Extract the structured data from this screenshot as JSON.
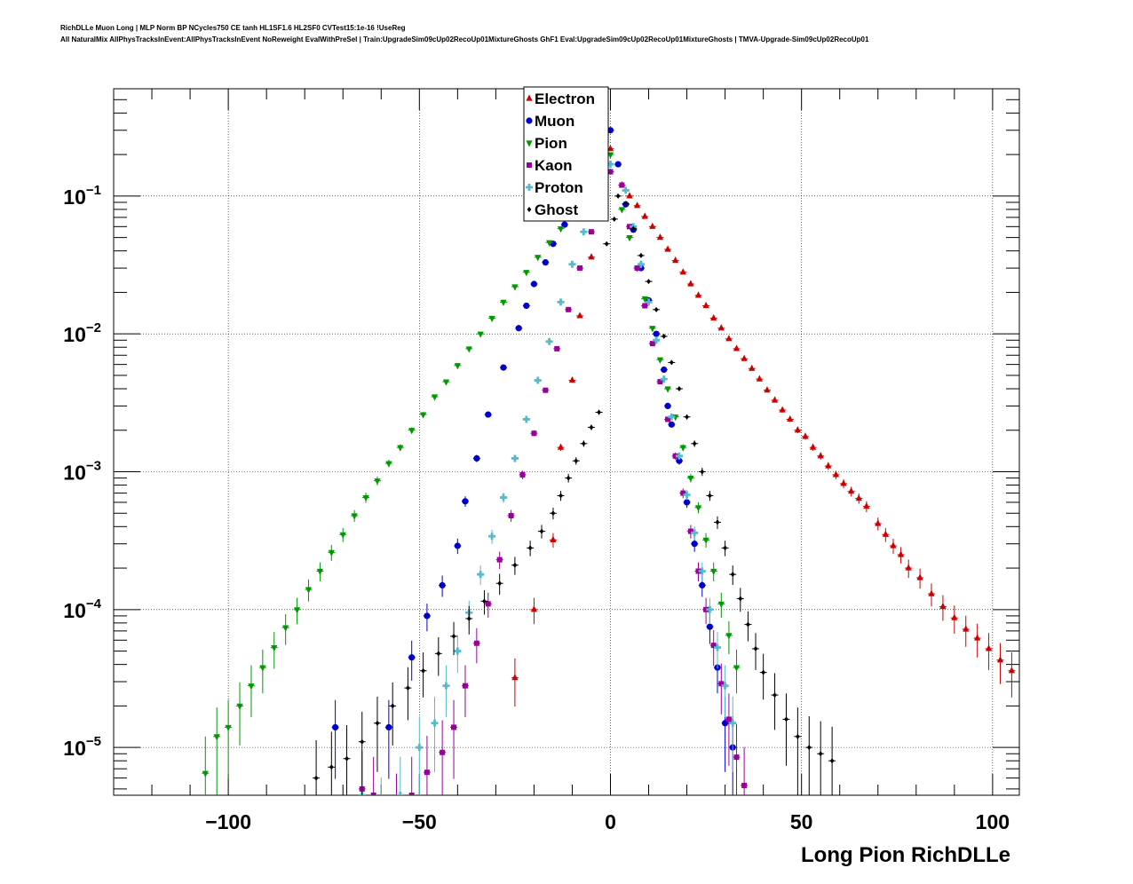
{
  "header": {
    "title_line1": "RichDLLe Muon Long | MLP Norm BP NCycles750 CE tanh HL1SF1.6 HL2SF0 CVTest15:1e-16 !UseReg",
    "title_line2": "All NaturalMix AllPhysTracksInEvent:AllPhysTracksInEvent NoReweight EvalWithPreSel | Train:UpgradeSim09cUp02RecoUp01MixtureGhosts GhF1 Eval:UpgradeSim09cUp02RecoUp01MixtureGhosts | TMVA-Upgrade-Sim09cUp02RecoUp01"
  },
  "chart_data": {
    "type": "scatter",
    "xlabel": "Long Pion RichDLLe",
    "ylabel": "",
    "xlim": [
      -130,
      107
    ],
    "ylim": [
      4.5e-06,
      0.6
    ],
    "yscale": "log",
    "grid": true,
    "legend_position": "top-center",
    "x_ticks": [
      -100,
      -50,
      0,
      50,
      100
    ],
    "x_tick_labels": [
      "−100",
      "−50",
      "0",
      "50",
      "100"
    ],
    "y_ticks": [
      1e-05,
      0.0001,
      0.001,
      0.01,
      0.1
    ],
    "y_tick_labels": [
      {
        "base": "10",
        "exp": "−5"
      },
      {
        "base": "10",
        "exp": "−4"
      },
      {
        "base": "10",
        "exp": "−3"
      },
      {
        "base": "10",
        "exp": "−2"
      },
      {
        "base": "10",
        "exp": "−1"
      }
    ],
    "series": [
      {
        "name": "Electron",
        "color": "#cc0000",
        "marker": "triangle-up",
        "points": [
          [
            -25,
            3.2e-05
          ],
          [
            -20,
            0.0001
          ],
          [
            -15,
            0.00032
          ],
          [
            -13,
            0.0015
          ],
          [
            -10,
            0.0046
          ],
          [
            -8,
            0.0135
          ],
          [
            -5,
            0.036
          ],
          [
            -3,
            0.19
          ],
          [
            0,
            0.22
          ],
          [
            3,
            0.12
          ],
          [
            5,
            0.1
          ],
          [
            7,
            0.085
          ],
          [
            9,
            0.071
          ],
          [
            11,
            0.06
          ],
          [
            13,
            0.05
          ],
          [
            15,
            0.041
          ],
          [
            17,
            0.034
          ],
          [
            19,
            0.028
          ],
          [
            21,
            0.023
          ],
          [
            23,
            0.019
          ],
          [
            25,
            0.016
          ],
          [
            27,
            0.013
          ],
          [
            29,
            0.011
          ],
          [
            31,
            0.0092
          ],
          [
            33,
            0.0078
          ],
          [
            35,
            0.0066
          ],
          [
            37,
            0.0056
          ],
          [
            39,
            0.0047
          ],
          [
            41,
            0.0039
          ],
          [
            43,
            0.0033
          ],
          [
            45,
            0.0028
          ],
          [
            47,
            0.0024
          ],
          [
            49,
            0.002
          ],
          [
            51,
            0.0018
          ],
          [
            53,
            0.0015
          ],
          [
            55,
            0.0013
          ],
          [
            57,
            0.0011
          ],
          [
            59,
            0.00095
          ],
          [
            61,
            0.00082
          ],
          [
            63,
            0.00072
          ],
          [
            65,
            0.00064
          ],
          [
            67,
            0.00056
          ],
          [
            70,
            0.00042
          ],
          [
            72,
            0.00035
          ],
          [
            74,
            0.00029
          ],
          [
            76,
            0.00025
          ],
          [
            78,
            0.0002
          ],
          [
            81,
            0.00017
          ],
          [
            84,
            0.00013
          ],
          [
            87,
            0.000105
          ],
          [
            90,
            8.7e-05
          ],
          [
            93,
            7.2e-05
          ],
          [
            96,
            6.2e-05
          ],
          [
            99,
            5.2e-05
          ],
          [
            102,
            4.3e-05
          ],
          [
            105,
            3.6e-05
          ]
        ]
      },
      {
        "name": "Muon",
        "color": "#0000cc",
        "marker": "circle",
        "points": [
          [
            -72,
            1.4e-05
          ],
          [
            -65,
            2.5e-06
          ],
          [
            -58,
            1.4e-05
          ],
          [
            -52,
            4.5e-05
          ],
          [
            -48,
            9e-05
          ],
          [
            -44,
            0.00015
          ],
          [
            -40,
            0.00029
          ],
          [
            -38,
            0.00061
          ],
          [
            -35,
            0.00125
          ],
          [
            -32,
            0.0026
          ],
          [
            -28,
            0.0057
          ],
          [
            -24,
            0.011
          ],
          [
            -22,
            0.016
          ],
          [
            -20,
            0.023
          ],
          [
            -17,
            0.033
          ],
          [
            -15,
            0.045
          ],
          [
            -12,
            0.062
          ],
          [
            -10,
            0.078
          ],
          [
            -5,
            0.12
          ],
          [
            0,
            0.3
          ],
          [
            2,
            0.17
          ],
          [
            4,
            0.087
          ],
          [
            6,
            0.057
          ],
          [
            8,
            0.03
          ],
          [
            10,
            0.0175
          ],
          [
            12,
            0.01
          ],
          [
            14,
            0.0055
          ],
          [
            15,
            0.003
          ],
          [
            16,
            0.0022
          ],
          [
            18,
            0.0012
          ],
          [
            20,
            0.0006
          ],
          [
            22,
            0.0003
          ],
          [
            24,
            0.00015
          ],
          [
            26,
            7.5e-05
          ],
          [
            28,
            3.8e-05
          ],
          [
            30,
            1.5e-05
          ],
          [
            32,
            1e-05
          ]
        ]
      },
      {
        "name": "Pion",
        "color": "#009900",
        "marker": "triangle-down",
        "points": [
          [
            -106,
            6.5e-06
          ],
          [
            -103,
            1.2e-05
          ],
          [
            -100,
            1.4e-05
          ],
          [
            -97,
            2e-05
          ],
          [
            -94,
            2.8e-05
          ],
          [
            -91,
            3.8e-05
          ],
          [
            -88,
            5.3e-05
          ],
          [
            -85,
            7.4e-05
          ],
          [
            -82,
            0.0001
          ],
          [
            -79,
            0.00014
          ],
          [
            -76,
            0.00019
          ],
          [
            -73,
            0.00026
          ],
          [
            -70,
            0.00035
          ],
          [
            -67,
            0.00048
          ],
          [
            -64,
            0.00065
          ],
          [
            -61,
            0.00086
          ],
          [
            -58,
            0.00115
          ],
          [
            -55,
            0.0015
          ],
          [
            -52,
            0.002
          ],
          [
            -49,
            0.0026
          ],
          [
            -46,
            0.0035
          ],
          [
            -43,
            0.0045
          ],
          [
            -40,
            0.0059
          ],
          [
            -37,
            0.0078
          ],
          [
            -34,
            0.01
          ],
          [
            -31,
            0.013
          ],
          [
            -28,
            0.017
          ],
          [
            -25,
            0.022
          ],
          [
            -22,
            0.028
          ],
          [
            -19,
            0.036
          ],
          [
            -16,
            0.046
          ],
          [
            -13,
            0.058
          ],
          [
            -10,
            0.074
          ],
          [
            -5,
            0.1
          ],
          [
            0,
            0.2
          ],
          [
            3,
            0.08
          ],
          [
            5,
            0.05
          ],
          [
            7,
            0.03
          ],
          [
            9,
            0.018
          ],
          [
            11,
            0.011
          ],
          [
            13,
            0.0065
          ],
          [
            15,
            0.004
          ],
          [
            17,
            0.0025
          ],
          [
            19,
            0.0015
          ],
          [
            21,
            0.0009
          ],
          [
            23,
            0.00055
          ],
          [
            25,
            0.00032
          ],
          [
            27,
            0.00019
          ],
          [
            29,
            0.00011
          ],
          [
            31,
            6.5e-05
          ],
          [
            33,
            3.8e-05
          ]
        ]
      },
      {
        "name": "Kaon",
        "color": "#990099",
        "marker": "square",
        "points": [
          [
            -65,
            5e-06
          ],
          [
            -62,
            4.5e-06
          ],
          [
            -56,
            3.4e-06
          ],
          [
            -52,
            4.5e-06
          ],
          [
            -48,
            6.6e-06
          ],
          [
            -44,
            9.2e-06
          ],
          [
            -41,
            1.4e-05
          ],
          [
            -38,
            2.8e-05
          ],
          [
            -35,
            5.7e-05
          ],
          [
            -32,
            0.00011
          ],
          [
            -29,
            0.00023
          ],
          [
            -26,
            0.00048
          ],
          [
            -23,
            0.00095
          ],
          [
            -20,
            0.0019
          ],
          [
            -17,
            0.0039
          ],
          [
            -14,
            0.0078
          ],
          [
            -11,
            0.015
          ],
          [
            -8,
            0.03
          ],
          [
            -5,
            0.055
          ],
          [
            -3,
            0.085
          ],
          [
            0,
            0.15
          ],
          [
            3,
            0.12
          ],
          [
            5,
            0.06
          ],
          [
            7,
            0.03
          ],
          [
            9,
            0.016
          ],
          [
            11,
            0.0085
          ],
          [
            13,
            0.0045
          ],
          [
            15,
            0.0024
          ],
          [
            17,
            0.0013
          ],
          [
            19,
            0.0007
          ],
          [
            21,
            0.00037
          ],
          [
            23,
            0.00019
          ],
          [
            25,
            0.0001
          ],
          [
            27,
            5.5e-05
          ],
          [
            29,
            2.9e-05
          ],
          [
            31,
            1.6e-05
          ],
          [
            33,
            8.5e-06
          ],
          [
            35,
            5.3e-06
          ]
        ]
      },
      {
        "name": "Proton",
        "color": "#55bbcc",
        "marker": "cross",
        "points": [
          [
            -65,
            4.5e-06
          ],
          [
            -60,
            3.2e-06
          ],
          [
            -55,
            4.5e-06
          ],
          [
            -50,
            1e-05
          ],
          [
            -46,
            1.5e-05
          ],
          [
            -43,
            2.8e-05
          ],
          [
            -40,
            5e-05
          ],
          [
            -37,
            9.5e-05
          ],
          [
            -34,
            0.00018
          ],
          [
            -31,
            0.00034
          ],
          [
            -28,
            0.00065
          ],
          [
            -25,
            0.00125
          ],
          [
            -22,
            0.0024
          ],
          [
            -19,
            0.0046
          ],
          [
            -16,
            0.0088
          ],
          [
            -13,
            0.017
          ],
          [
            -10,
            0.032
          ],
          [
            -7,
            0.055
          ],
          [
            -4,
            0.09
          ],
          [
            0,
            0.17
          ],
          [
            4,
            0.11
          ],
          [
            6,
            0.06
          ],
          [
            8,
            0.032
          ],
          [
            10,
            0.017
          ],
          [
            12,
            0.009
          ],
          [
            14,
            0.0047
          ],
          [
            16,
            0.0025
          ],
          [
            18,
            0.0013
          ],
          [
            20,
            0.00068
          ],
          [
            22,
            0.00036
          ],
          [
            24,
            0.00019
          ],
          [
            26,
            0.0001
          ],
          [
            28,
            5.3e-05
          ],
          [
            30,
            2.8e-05
          ],
          [
            32,
            1.5e-05
          ]
        ]
      },
      {
        "name": "Ghost",
        "color": "#000000",
        "marker": "diamond",
        "points": [
          [
            -77,
            6e-06
          ],
          [
            -73,
            7.2e-06
          ],
          [
            -69,
            8.3e-06
          ],
          [
            -65,
            1.1e-05
          ],
          [
            -61,
            1.5e-05
          ],
          [
            -57,
            2e-05
          ],
          [
            -53,
            2.7e-05
          ],
          [
            -49,
            3.6e-05
          ],
          [
            -45,
            4.8e-05
          ],
          [
            -41,
            6.4e-05
          ],
          [
            -37,
            8.6e-05
          ],
          [
            -33,
            0.000115
          ],
          [
            -29,
            0.000155
          ],
          [
            -25,
            0.00021
          ],
          [
            -21,
            0.00028
          ],
          [
            -18,
            0.00037
          ],
          [
            -15,
            0.0005
          ],
          [
            -13,
            0.00067
          ],
          [
            -11,
            0.0009
          ],
          [
            -9,
            0.0012
          ],
          [
            -7,
            0.0016
          ],
          [
            -5,
            0.0021
          ],
          [
            -3,
            0.0027
          ],
          [
            -1,
            0.045
          ],
          [
            1,
            0.068
          ],
          [
            2,
            0.1
          ],
          [
            4,
            0.088
          ],
          [
            6,
            0.058
          ],
          [
            8,
            0.037
          ],
          [
            10,
            0.024
          ],
          [
            12,
            0.015
          ],
          [
            14,
            0.0096
          ],
          [
            16,
            0.0062
          ],
          [
            18,
            0.004
          ],
          [
            20,
            0.0025
          ],
          [
            22,
            0.0016
          ],
          [
            24,
            0.001
          ],
          [
            26,
            0.00067
          ],
          [
            28,
            0.00043
          ],
          [
            30,
            0.00028
          ],
          [
            32,
            0.00018
          ],
          [
            34,
            0.00012
          ],
          [
            36,
            7.8e-05
          ],
          [
            38,
            5.2e-05
          ],
          [
            40,
            3.5e-05
          ],
          [
            43,
            2.4e-05
          ],
          [
            46,
            1.6e-05
          ],
          [
            49,
            1.2e-05
          ],
          [
            52,
            1e-05
          ],
          [
            55,
            9e-06
          ],
          [
            58,
            8e-06
          ]
        ]
      }
    ]
  }
}
